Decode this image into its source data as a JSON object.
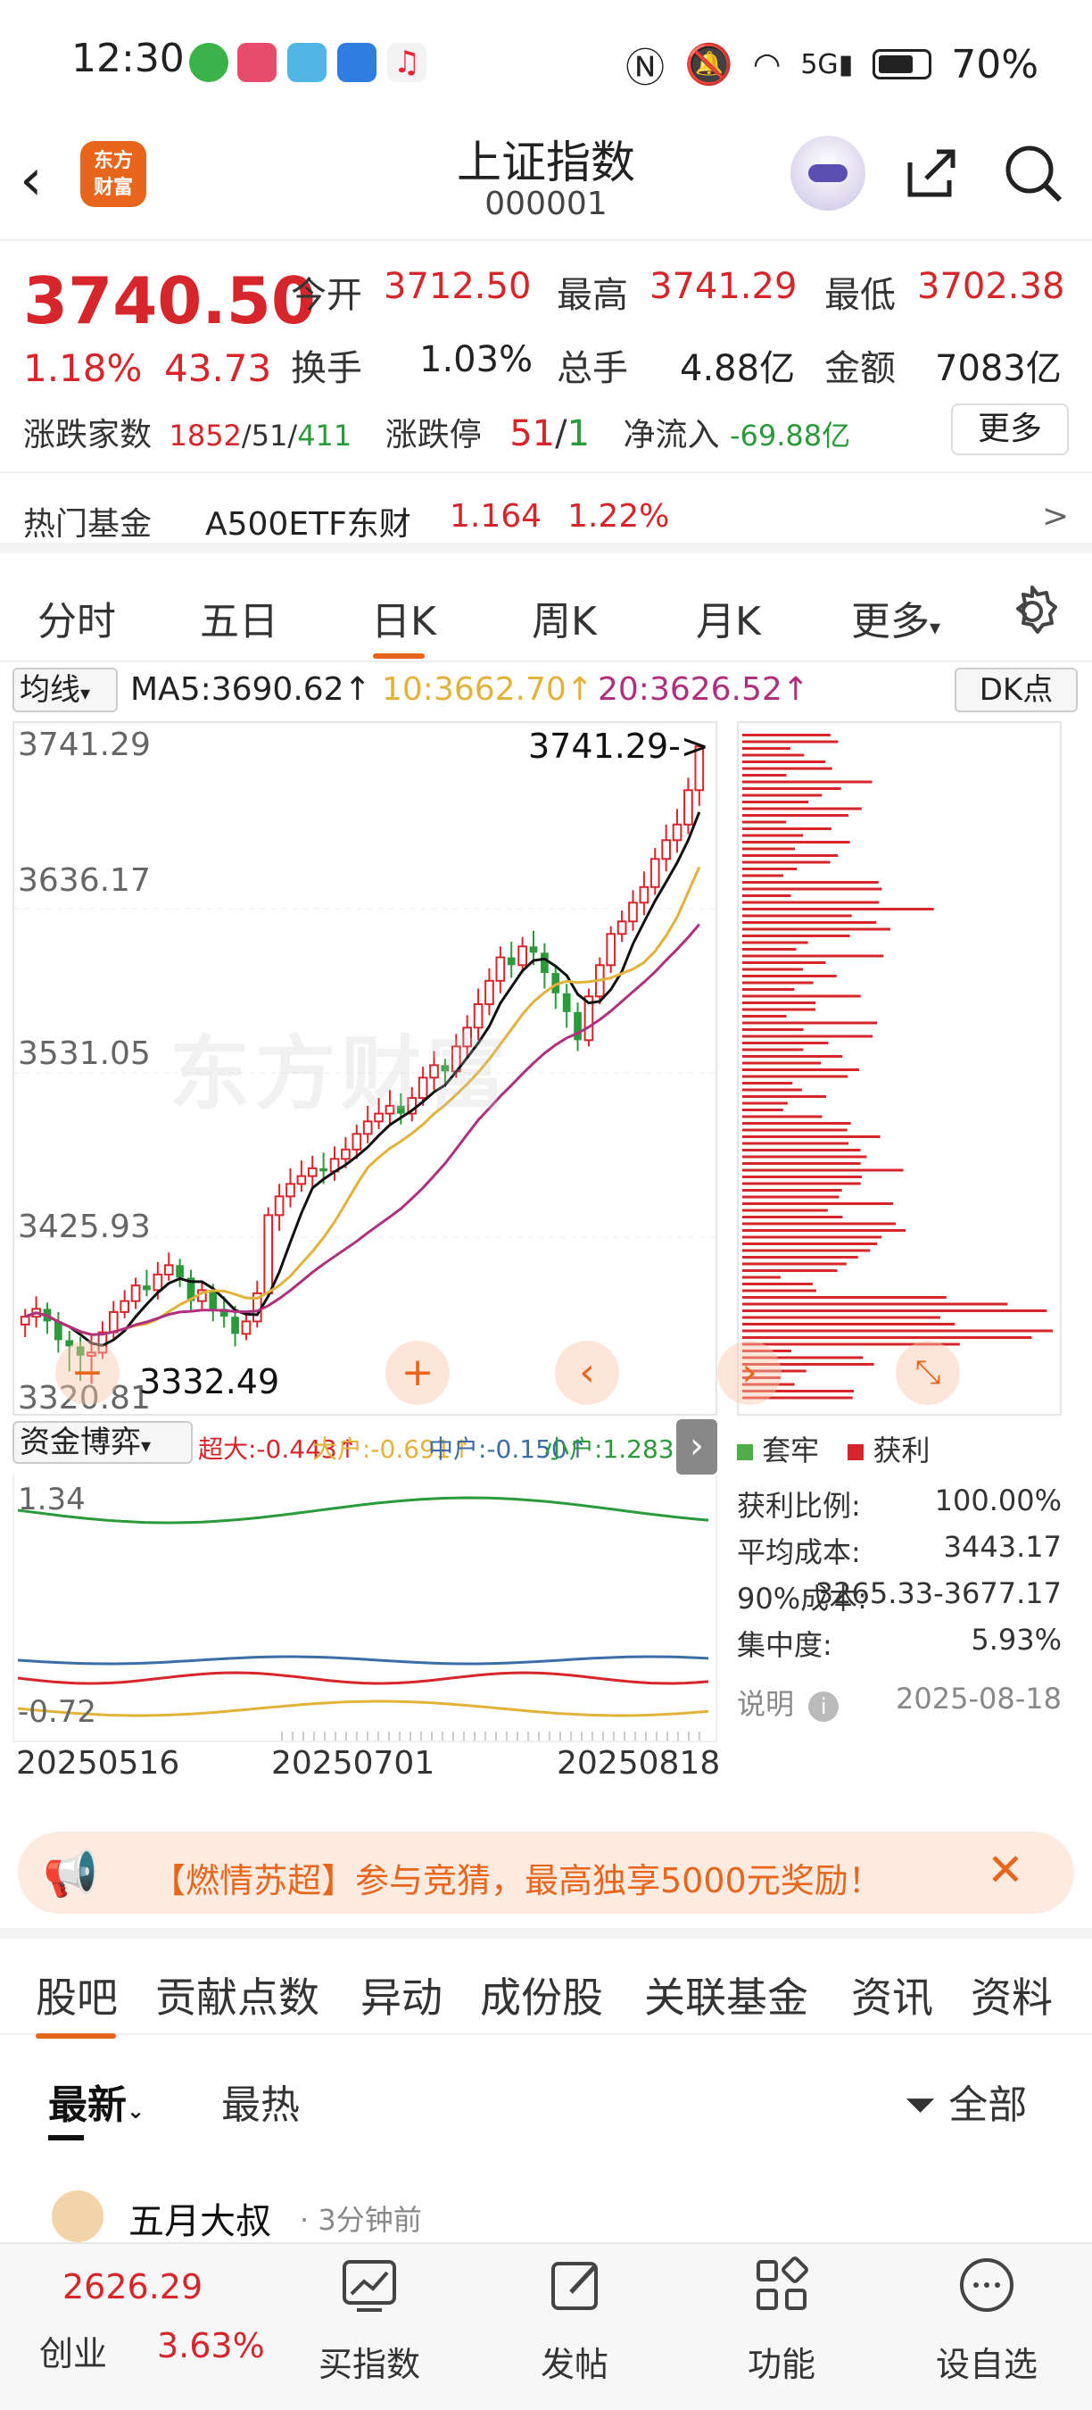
{
  "status_bar": {
    "time": "12:30",
    "battery": "70%",
    "network": "5G"
  },
  "header": {
    "back": "‹",
    "logo_text_1": "东方",
    "logo_text_2": "财富",
    "title": "上证指数",
    "code": "000001"
  },
  "quote": {
    "price": "3740.50",
    "change_pct": "1.18%",
    "change_val": "43.73",
    "open_label": "今开",
    "open": "3712.50",
    "high_label": "最高",
    "high": "3741.29",
    "low_label": "最低",
    "low": "3702.38",
    "turnover_label": "换手",
    "turnover": "1.03%",
    "volume_label": "总手",
    "volume": "4.88亿",
    "amount_label": "金额",
    "amount": "7083亿",
    "breadth_label": "涨跌家数",
    "breadth_up": "1852",
    "breadth_sep1": "/",
    "breadth_flat": "51",
    "breadth_sep2": "/",
    "breadth_down": "411",
    "limit_label": "涨跌停",
    "limit_up": "51",
    "limit_sep": "/",
    "limit_down": "1",
    "netflow_label": "净流入",
    "netflow": "-69.88亿",
    "more": "更多"
  },
  "hot_fund": {
    "label": "热门基金",
    "name": "A500ETF东财",
    "price": "1.164",
    "pct": "1.22%",
    "arrow": ">"
  },
  "kline_tabs": [
    "分时",
    "五日",
    "日K",
    "周K",
    "月K",
    "更多"
  ],
  "active_tab": "日K",
  "ma": {
    "select": "均线",
    "ma5": "MA5:3690.62↑",
    "ma10": "10:3662.70↑",
    "ma20": "20:3626.52↑",
    "dk": "DK点"
  },
  "chart_data": {
    "type": "candlestick",
    "y_ticks": [
      "3741.29",
      "3636.17",
      "3531.05",
      "3425.93",
      "3320.81"
    ],
    "ylim": [
      3320.81,
      3741.29
    ],
    "high_annotation": "3741.29->",
    "low_annotation": "3332.49",
    "x_ticks": [
      "20250516",
      "20250701",
      "20250818"
    ],
    "candles": [
      [
        3370,
        3375,
        3380,
        3362
      ],
      [
        3375,
        3380,
        3388,
        3368
      ],
      [
        3380,
        3372,
        3384,
        3364
      ],
      [
        3372,
        3360,
        3378,
        3352
      ],
      [
        3360,
        3356,
        3366,
        3340
      ],
      [
        3356,
        3350,
        3362,
        3334
      ],
      [
        3350,
        3352,
        3364,
        3332
      ],
      [
        3352,
        3365,
        3372,
        3348
      ],
      [
        3365,
        3378,
        3385,
        3360
      ],
      [
        3378,
        3385,
        3392,
        3374
      ],
      [
        3385,
        3395,
        3400,
        3380
      ],
      [
        3395,
        3392,
        3405,
        3388
      ],
      [
        3392,
        3402,
        3410,
        3386
      ],
      [
        3402,
        3408,
        3416,
        3398
      ],
      [
        3408,
        3400,
        3412,
        3394
      ],
      [
        3400,
        3385,
        3405,
        3378
      ],
      [
        3385,
        3392,
        3398,
        3380
      ],
      [
        3392,
        3380,
        3396,
        3372
      ],
      [
        3380,
        3375,
        3388,
        3368
      ],
      [
        3375,
        3364,
        3382,
        3356
      ],
      [
        3364,
        3372,
        3378,
        3360
      ],
      [
        3372,
        3390,
        3398,
        3368
      ],
      [
        3390,
        3440,
        3445,
        3388
      ],
      [
        3440,
        3452,
        3460,
        3430
      ],
      [
        3452,
        3460,
        3470,
        3445
      ],
      [
        3460,
        3465,
        3475,
        3455
      ],
      [
        3465,
        3470,
        3478,
        3458
      ],
      [
        3470,
        3468,
        3480,
        3460
      ],
      [
        3468,
        3476,
        3484,
        3462
      ],
      [
        3476,
        3482,
        3490,
        3470
      ],
      [
        3482,
        3492,
        3498,
        3476
      ],
      [
        3492,
        3500,
        3510,
        3486
      ],
      [
        3500,
        3505,
        3515,
        3495
      ],
      [
        3505,
        3510,
        3520,
        3498
      ],
      [
        3510,
        3505,
        3518,
        3498
      ],
      [
        3505,
        3515,
        3522,
        3500
      ],
      [
        3515,
        3528,
        3535,
        3510
      ],
      [
        3528,
        3536,
        3545,
        3520
      ],
      [
        3536,
        3532,
        3540,
        3522
      ],
      [
        3532,
        3548,
        3556,
        3528
      ],
      [
        3548,
        3560,
        3568,
        3540
      ],
      [
        3560,
        3575,
        3585,
        3552
      ],
      [
        3575,
        3590,
        3598,
        3568
      ],
      [
        3590,
        3605,
        3612,
        3582
      ],
      [
        3605,
        3600,
        3615,
        3592
      ],
      [
        3600,
        3612,
        3618,
        3595
      ],
      [
        3612,
        3608,
        3622,
        3600
      ],
      [
        3608,
        3595,
        3614,
        3585
      ],
      [
        3595,
        3582,
        3600,
        3572
      ],
      [
        3582,
        3570,
        3588,
        3560
      ],
      [
        3570,
        3552,
        3576,
        3545
      ],
      [
        3552,
        3580,
        3585,
        3548
      ],
      [
        3580,
        3600,
        3605,
        3575
      ],
      [
        3600,
        3620,
        3625,
        3595
      ],
      [
        3620,
        3628,
        3635,
        3615
      ],
      [
        3628,
        3640,
        3648,
        3622
      ],
      [
        3640,
        3650,
        3660,
        3632
      ],
      [
        3650,
        3668,
        3675,
        3645
      ],
      [
        3668,
        3680,
        3690,
        3660
      ],
      [
        3680,
        3690,
        3700,
        3672
      ],
      [
        3690,
        3712,
        3720,
        3684
      ],
      [
        3712,
        3740,
        3741,
        3702
      ]
    ],
    "ma_series": [
      {
        "name": "MA5",
        "color": "#111111"
      },
      {
        "name": "MA10",
        "color": "#e2b23a"
      },
      {
        "name": "MA20",
        "color": "#b0307e"
      }
    ]
  },
  "profile": {
    "legend_trapped": "套牢",
    "legend_profit": "获利",
    "rows": [
      {
        "label": "获利比例:",
        "value": "100.00%"
      },
      {
        "label": "平均成本:",
        "value": "3443.17"
      },
      {
        "label": "90%成本:",
        "value": "3265.33-3677.17"
      },
      {
        "label": "集中度:",
        "value": "5.93%"
      }
    ],
    "note_label": "说明",
    "note_date": "2025-08-18"
  },
  "indicator": {
    "select": "资金博弈",
    "super": "超大:-0.443↑",
    "big": "大户:-0.691↑",
    "mid": "中户:-0.150↑",
    "small": "小户:1.283↓",
    "top": "1.34",
    "bottom": "-0.72"
  },
  "banner": {
    "text": "【燃情苏超】参与竞猜，最高独享5000元奖励！"
  },
  "bottom_tabs": [
    "股吧",
    "贡献点数",
    "异动",
    "成份股",
    "关联基金",
    "资讯",
    "资料"
  ],
  "sub_tabs": {
    "latest": "最新",
    "hot": "最热",
    "filter": "全部"
  },
  "post": {
    "author": "五月大叔",
    "time": "· 3分钟前"
  },
  "bottom_nav": {
    "index_value": "2626.29",
    "index_name": "创业",
    "index_pct": "3.63%",
    "buy": "买指数",
    "post": "发帖",
    "func": "功能",
    "watch": "设自选"
  },
  "colors": {
    "up": "#d7262b",
    "down": "#2a9a3a",
    "accent": "#e8661c"
  }
}
